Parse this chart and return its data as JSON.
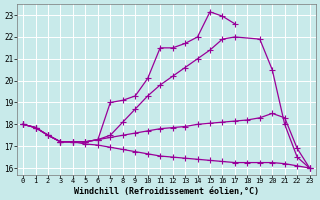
{
  "bg_color": "#c8eaea",
  "grid_color": "#ffffff",
  "line_color": "#990099",
  "line_width": 0.9,
  "marker": "+",
  "marker_size": 4,
  "marker_lw": 0.8,
  "xlim": [
    -0.5,
    23.5
  ],
  "ylim": [
    15.7,
    23.5
  ],
  "xlabel": "Windchill (Refroidissement éolien,°C)",
  "xlabel_fontsize": 6,
  "xtick_fontsize": 5,
  "ytick_fontsize": 5.5,
  "xticks": [
    0,
    1,
    2,
    3,
    4,
    5,
    6,
    7,
    8,
    9,
    10,
    11,
    12,
    13,
    14,
    15,
    16,
    17,
    18,
    19,
    20,
    21,
    22,
    23
  ],
  "yticks": [
    16,
    17,
    18,
    19,
    20,
    21,
    22,
    23
  ],
  "line1_x": [
    0,
    1,
    2,
    3,
    4,
    5,
    6,
    7,
    8,
    9,
    10,
    11,
    12,
    13,
    14,
    15,
    16,
    17
  ],
  "line1_y": [
    18.0,
    17.85,
    17.5,
    17.2,
    17.2,
    17.2,
    17.3,
    19.0,
    19.1,
    19.3,
    20.1,
    21.5,
    21.5,
    21.7,
    22.0,
    23.15,
    22.95,
    22.6
  ],
  "line2_x": [
    0,
    1,
    2,
    3,
    4,
    5,
    6,
    7,
    8,
    9,
    10,
    11,
    12,
    13,
    14,
    15,
    16,
    17,
    19,
    20,
    21,
    22,
    23
  ],
  "line2_y": [
    18.0,
    17.85,
    17.5,
    17.2,
    17.2,
    17.2,
    17.3,
    17.5,
    18.1,
    18.7,
    19.3,
    19.8,
    20.2,
    20.6,
    21.0,
    21.4,
    21.9,
    22.0,
    21.9,
    20.5,
    18.0,
    16.5,
    16.0
  ],
  "line3_x": [
    0,
    1,
    2,
    3,
    4,
    5,
    6,
    7,
    8,
    9,
    10,
    11,
    12,
    13,
    14,
    15,
    16,
    17,
    18,
    19,
    20,
    21,
    22,
    23
  ],
  "line3_y": [
    18.0,
    17.85,
    17.5,
    17.2,
    17.2,
    17.2,
    17.3,
    17.4,
    17.5,
    17.6,
    17.7,
    17.8,
    17.85,
    17.9,
    18.0,
    18.05,
    18.1,
    18.15,
    18.2,
    18.3,
    18.5,
    18.3,
    16.9,
    16.0
  ],
  "line4_x": [
    0,
    1,
    2,
    3,
    4,
    5,
    6,
    7,
    8,
    9,
    10,
    11,
    12,
    13,
    14,
    15,
    16,
    17,
    18,
    19,
    20,
    21,
    22,
    23
  ],
  "line4_y": [
    18.0,
    17.85,
    17.5,
    17.2,
    17.2,
    17.1,
    17.05,
    16.95,
    16.85,
    16.75,
    16.65,
    16.55,
    16.5,
    16.45,
    16.4,
    16.35,
    16.3,
    16.25,
    16.25,
    16.25,
    16.25,
    16.2,
    16.1,
    16.0
  ]
}
